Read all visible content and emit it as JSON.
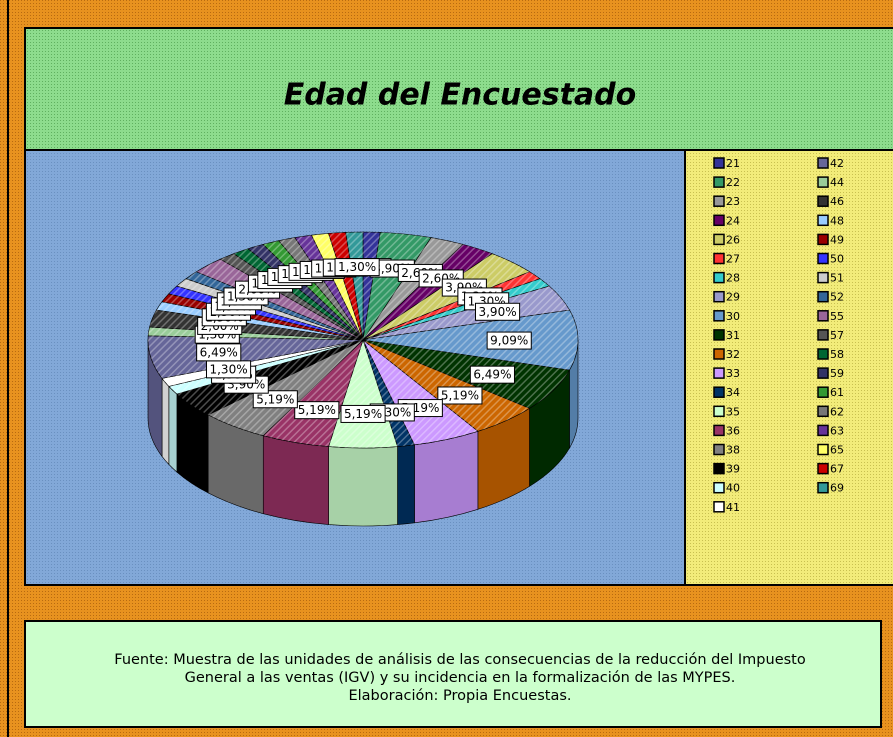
{
  "chart_data": {
    "type": "pie",
    "title": "Edad del Encuestado",
    "categories": [
      "21",
      "22",
      "23",
      "24",
      "26",
      "27",
      "28",
      "29",
      "30",
      "31",
      "32",
      "33",
      "34",
      "35",
      "36",
      "38",
      "39",
      "40",
      "41",
      "42",
      "44",
      "46",
      "48",
      "49",
      "50",
      "51",
      "52",
      "55",
      "57",
      "58",
      "59",
      "61",
      "62",
      "63",
      "65",
      "67",
      "69"
    ],
    "values": [
      1.3,
      3.9,
      2.6,
      2.6,
      3.9,
      1.3,
      1.3,
      3.9,
      9.09,
      6.49,
      5.19,
      5.19,
      1.3,
      5.19,
      5.19,
      5.19,
      3.9,
      1.3,
      1.3,
      6.49,
      1.3,
      2.6,
      1.3,
      1.3,
      1.3,
      1.3,
      1.3,
      2.6,
      1.3,
      1.3,
      1.3,
      1.3,
      1.3,
      1.3,
      1.3,
      1.3,
      1.3
    ],
    "value_labels": [
      "1,30%",
      "3,90%",
      "2,60%",
      "2,60%",
      "3,90%",
      "1,30%",
      "1,30%",
      "3,90%",
      "9,09%",
      "6,49%",
      "5,19%",
      "5,19%",
      "1,30%",
      "5,19%",
      "5,19%",
      "5,19%",
      "3,90%",
      "1,30%",
      "1,30%",
      "6,49%",
      "1,30%",
      "2,60%",
      "1,30%",
      "1,30%",
      "1,30%",
      "1,30%",
      "1,30%",
      "2,60%",
      "1,30%",
      "1,30%",
      "1,30%",
      "1,30%",
      "1,30%",
      "1,30%",
      "1,30%",
      "1,30%",
      "1,30%"
    ],
    "colors": [
      "#333399",
      "#339966",
      "#999999",
      "#660066",
      "#cccc66",
      "#ff3333",
      "#33cccc",
      "#9999cc",
      "#6699cc",
      "#003300",
      "#cc6600",
      "#cc99ff",
      "#003366",
      "#ccffcc",
      "#993366",
      "#808080",
      "#000000",
      "#ccffff",
      "#ffffff",
      "#666699",
      "#99cc99",
      "#333333",
      "#99ccff",
      "#990000",
      "#3333ff",
      "#cccccc",
      "#336699",
      "#996699",
      "#555555",
      "#006633",
      "#333366",
      "#339933",
      "#777777",
      "#663399",
      "#ffff66",
      "#cc0000",
      "#339999"
    ],
    "source": [
      "Fuente: Muestra de las unidades de análisis de las consecuencias de la reducción del Impuesto",
      "General a las ventas (IGV) y su incidencia en la formalización de las MYPES.",
      "Elaboración: Propia Encuestas."
    ]
  }
}
